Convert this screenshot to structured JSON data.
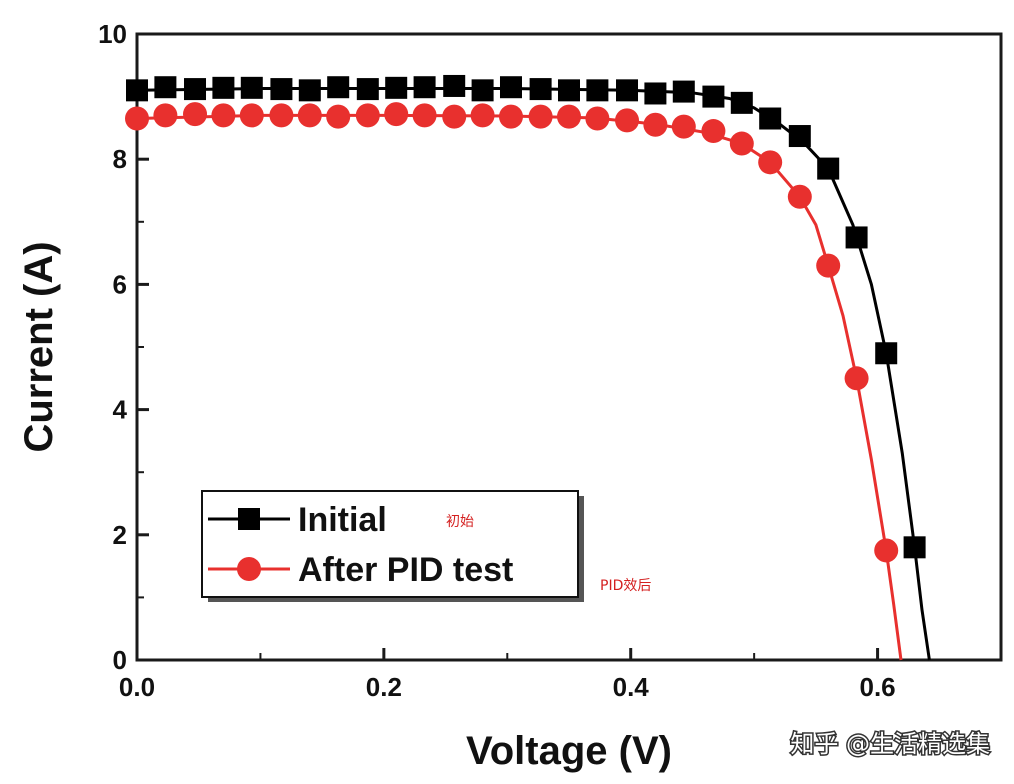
{
  "chart_data": {
    "type": "line",
    "xlabel": "Voltage (V)",
    "ylabel": "Current (A)",
    "xlim": [
      0,
      0.7
    ],
    "ylim": [
      0,
      10
    ],
    "x_ticks": [
      "0.0",
      "0.2",
      "0.4",
      "0.6"
    ],
    "y_ticks": [
      "0",
      "2",
      "4",
      "6",
      "8",
      "10"
    ],
    "legend_position": "lower-left",
    "series": [
      {
        "name": "Initial",
        "note": "初始",
        "color": "#000000",
        "marker": "square",
        "points": [
          [
            0.0,
            9.1
          ],
          [
            0.023,
            9.15
          ],
          [
            0.047,
            9.12
          ],
          [
            0.07,
            9.14
          ],
          [
            0.093,
            9.14
          ],
          [
            0.117,
            9.12
          ],
          [
            0.14,
            9.1
          ],
          [
            0.163,
            9.15
          ],
          [
            0.187,
            9.12
          ],
          [
            0.21,
            9.14
          ],
          [
            0.233,
            9.15
          ],
          [
            0.257,
            9.17
          ],
          [
            0.28,
            9.1
          ],
          [
            0.303,
            9.15
          ],
          [
            0.327,
            9.12
          ],
          [
            0.35,
            9.1
          ],
          [
            0.373,
            9.1
          ],
          [
            0.397,
            9.1
          ],
          [
            0.42,
            9.05
          ],
          [
            0.443,
            9.08
          ],
          [
            0.467,
            9.0
          ],
          [
            0.49,
            8.9
          ],
          [
            0.513,
            8.65
          ],
          [
            0.537,
            8.37
          ],
          [
            0.56,
            7.85
          ],
          [
            0.583,
            6.75
          ],
          [
            0.607,
            4.9
          ],
          [
            0.63,
            1.8
          ]
        ],
        "line": [
          [
            0.0,
            9.1
          ],
          [
            0.1,
            9.13
          ],
          [
            0.2,
            9.13
          ],
          [
            0.3,
            9.13
          ],
          [
            0.4,
            9.1
          ],
          [
            0.45,
            9.06
          ],
          [
            0.48,
            8.97
          ],
          [
            0.5,
            8.82
          ],
          [
            0.52,
            8.57
          ],
          [
            0.54,
            8.27
          ],
          [
            0.56,
            7.85
          ],
          [
            0.58,
            6.95
          ],
          [
            0.595,
            6.0
          ],
          [
            0.607,
            4.9
          ],
          [
            0.62,
            3.3
          ],
          [
            0.63,
            1.8
          ],
          [
            0.636,
            0.8
          ],
          [
            0.642,
            0.0
          ]
        ]
      },
      {
        "name": "After PID test",
        "note": "PID效后",
        "color": "#e8302e",
        "marker": "circle",
        "points": [
          [
            0.0,
            8.65
          ],
          [
            0.023,
            8.7
          ],
          [
            0.047,
            8.72
          ],
          [
            0.07,
            8.7
          ],
          [
            0.093,
            8.7
          ],
          [
            0.117,
            8.7
          ],
          [
            0.14,
            8.7
          ],
          [
            0.163,
            8.68
          ],
          [
            0.187,
            8.7
          ],
          [
            0.21,
            8.72
          ],
          [
            0.233,
            8.7
          ],
          [
            0.257,
            8.68
          ],
          [
            0.28,
            8.7
          ],
          [
            0.303,
            8.68
          ],
          [
            0.327,
            8.68
          ],
          [
            0.35,
            8.68
          ],
          [
            0.373,
            8.65
          ],
          [
            0.397,
            8.62
          ],
          [
            0.42,
            8.55
          ],
          [
            0.443,
            8.52
          ],
          [
            0.467,
            8.45
          ],
          [
            0.49,
            8.25
          ],
          [
            0.513,
            7.95
          ],
          [
            0.537,
            7.4
          ],
          [
            0.56,
            6.3
          ],
          [
            0.583,
            4.5
          ],
          [
            0.607,
            1.75
          ]
        ],
        "line": [
          [
            0.0,
            8.65
          ],
          [
            0.1,
            8.7
          ],
          [
            0.2,
            8.7
          ],
          [
            0.3,
            8.69
          ],
          [
            0.37,
            8.66
          ],
          [
            0.42,
            8.56
          ],
          [
            0.46,
            8.43
          ],
          [
            0.49,
            8.25
          ],
          [
            0.513,
            7.95
          ],
          [
            0.537,
            7.4
          ],
          [
            0.55,
            6.95
          ],
          [
            0.56,
            6.3
          ],
          [
            0.572,
            5.5
          ],
          [
            0.583,
            4.5
          ],
          [
            0.595,
            3.2
          ],
          [
            0.607,
            1.75
          ],
          [
            0.613,
            0.9
          ],
          [
            0.619,
            0.0
          ]
        ]
      }
    ]
  },
  "watermark": "知乎 @生活精选集"
}
